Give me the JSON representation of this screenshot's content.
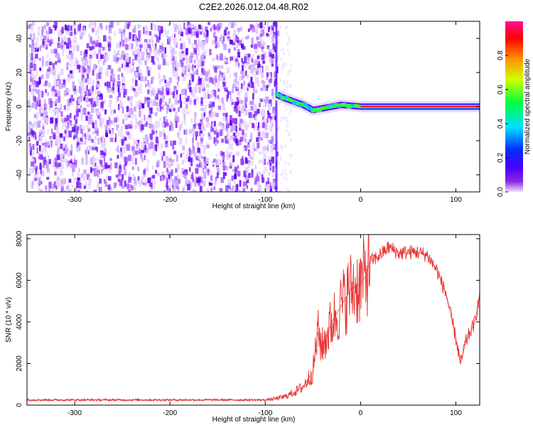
{
  "title": "C2E2.2026.012.04.48.R02",
  "chart_data": [
    {
      "type": "heatmap",
      "name": "spectrogram",
      "xlabel": "Height of straight line (km)",
      "ylabel": "Frequency (Hz)",
      "xlim": [
        -350,
        125
      ],
      "ylim": [
        -50,
        50
      ],
      "xticks": [
        -300,
        -200,
        -100,
        0,
        100
      ],
      "yticks": [
        -40,
        -20,
        0,
        20,
        40
      ],
      "noise_region_x": [
        -350,
        -88
      ],
      "signal_track": [
        {
          "x": -88,
          "y": 7
        },
        {
          "x": -80,
          "y": 5
        },
        {
          "x": -70,
          "y": 3
        },
        {
          "x": -60,
          "y": 1
        },
        {
          "x": -50,
          "y": -2
        },
        {
          "x": -40,
          "y": -1
        },
        {
          "x": -30,
          "y": 0
        },
        {
          "x": -20,
          "y": 1
        },
        {
          "x": -10,
          "y": 0.5
        },
        {
          "x": 0,
          "y": 0
        },
        {
          "x": 125,
          "y": 0
        }
      ],
      "colorbar": {
        "label": "Normalized spectral amplitude",
        "range": [
          0,
          1
        ],
        "ticks": [
          "0.0",
          "0.2",
          "0.4",
          "0.6",
          "0.8"
        ]
      }
    },
    {
      "type": "line",
      "name": "snr",
      "xlabel": "Height of straight line (km)",
      "ylabel": "SNR (10 * v/v)",
      "xlim": [
        -350,
        125
      ],
      "ylim": [
        0,
        8200
      ],
      "xticks": [
        -300,
        -200,
        -100,
        0,
        100
      ],
      "yticks": [
        0,
        2000,
        4000,
        6000,
        8000
      ],
      "series": [
        {
          "name": "SNR",
          "color": "#e8312f",
          "x": [
            -350,
            -300,
            -250,
            -200,
            -150,
            -110,
            -100,
            -90,
            -80,
            -70,
            -60,
            -50,
            -45,
            -40,
            -30,
            -20,
            -10,
            0,
            5,
            10,
            20,
            30,
            40,
            50,
            60,
            70,
            80,
            90,
            100,
            105,
            110,
            115,
            120,
            125
          ],
          "y": [
            250,
            250,
            250,
            250,
            250,
            250,
            250,
            300,
            400,
            600,
            900,
            1600,
            3500,
            2800,
            4000,
            4800,
            5600,
            5800,
            6200,
            6900,
            7200,
            7600,
            7300,
            7350,
            7350,
            7200,
            6500,
            5300,
            3200,
            2000,
            3000,
            3500,
            4000,
            5300
          ]
        }
      ]
    }
  ]
}
